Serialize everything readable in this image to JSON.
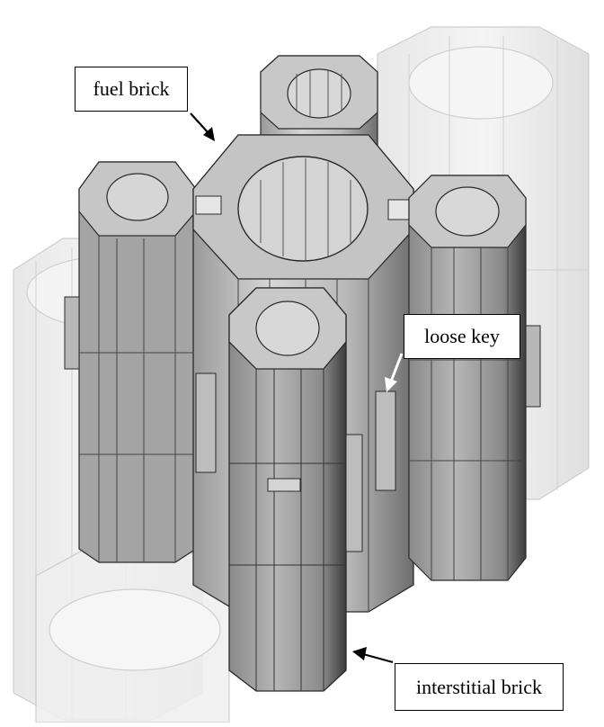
{
  "labels": {
    "fuel_brick": "fuel brick",
    "loose_key": "loose key",
    "interstitial_brick": "interstitial brick"
  },
  "colors": {
    "background": "#ffffff",
    "brick_face_light": "#d2d2d2",
    "brick_face_mid": "#b4b4b4",
    "brick_face_dark": "#7e7e7e",
    "brick_top": "#c8c8c8",
    "edge": "#2a2a2a",
    "ghost_fill": "#eeeeee",
    "ghost_edge": "#c6c6c6",
    "key_fill": "#b0b0b0"
  }
}
